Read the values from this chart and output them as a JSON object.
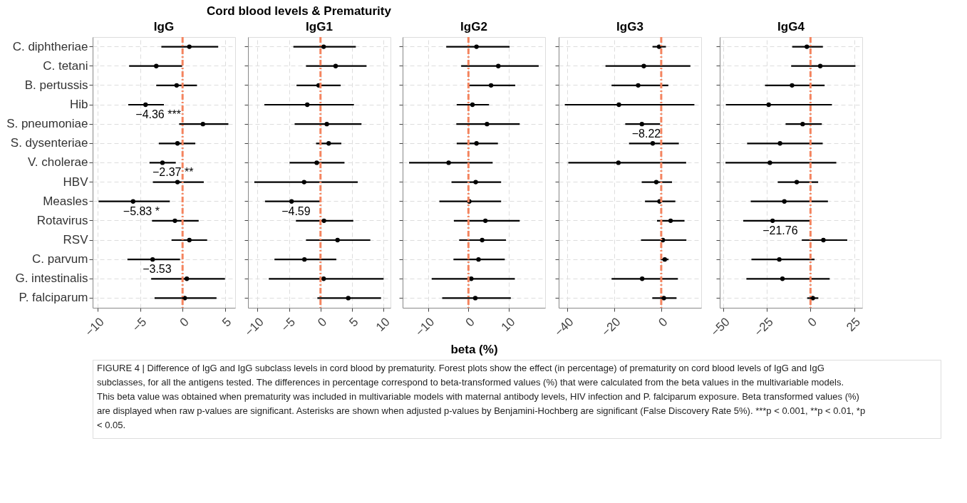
{
  "chart_data": [
    {
      "type": "scatter",
      "orientation": "horizontal",
      "title": "IgG",
      "color": "#000000",
      "grid": true,
      "marker": "circle",
      "categories": [
        "C. diphtheriae",
        "C. tetani",
        "B. pertussis",
        "Hib",
        "S. pneumoniae",
        "S. dysenteriae",
        "V. cholerae",
        "HBV",
        "Measles",
        "Rotavirus",
        "RSV",
        "C. parvum",
        "G. intestinalis",
        "P. falciparum"
      ],
      "values": [
        0.8,
        -3.1,
        -0.7,
        -4.36,
        2.4,
        -0.6,
        -2.37,
        -0.6,
        -5.83,
        -0.9,
        0.8,
        -3.53,
        0.5,
        0.25
      ],
      "errors": [
        [
          -2.5,
          4.2
        ],
        [
          -6.3,
          -0.05
        ],
        [
          -3.1,
          1.7
        ],
        [
          -6.4,
          -2.2
        ],
        [
          -0.4,
          5.4
        ],
        [
          -2.8,
          1.5
        ],
        [
          -3.9,
          -0.8
        ],
        [
          -3.5,
          2.5
        ],
        [
          -9.9,
          -1.5
        ],
        [
          -3.6,
          1.9
        ],
        [
          -1.3,
          2.9
        ],
        [
          -6.5,
          -0.3
        ],
        [
          -3.7,
          5.0
        ],
        [
          -3.3,
          4.0
        ]
      ],
      "xlim": [
        -10.6,
        6.2
      ],
      "xticks": [
        -10,
        -5,
        0,
        5
      ],
      "ref_lines": [
        {
          "axis": "x",
          "value": 0,
          "color": "#f4845f",
          "line_style": "dashed"
        }
      ],
      "annotations": [
        "Cord blood levels & Prematurity",
        {
          "text": "−4.36 ***",
          "x": -4.36,
          "y": "Hib"
        },
        {
          "text": "−2.37 **",
          "x": -2.37,
          "y": "V. cholerae"
        },
        {
          "text": "−5.83 *",
          "x": -5.83,
          "y": "Measles"
        },
        {
          "text": "−3.53",
          "x": -3.53,
          "y": "C. parvum"
        },
        "FIGURE 4 | Difference of IgG and IgG subclass levels in cord blood by prematurity. Forest plots show the effect (in percentage) of prematurity on cord blood levels of IgG and IgG subclasses, for all the antigens tested. The differences in percentage correspond to beta-transformed values (%) that were calculated from the beta values in the multivariable models. This beta value was obtained when prematurity was included in multivariable models with maternal antibody levels, HIV infection and P. falciparum exposure. Beta transformed values (%) are displayed when raw p-values are significant. Asterisks are shown when adjusted p-values by Benjamini-Hochberg are significant (False Discovery Rate 5%). ***p < 0.001, **p < 0.01, *p < 0.05."
      ]
    },
    {
      "type": "scatter",
      "orientation": "horizontal",
      "title": "IgG1",
      "color": "#000000",
      "grid": true,
      "marker": "circle",
      "tick_labels": "x",
      "categories": [
        "C. diphtheriae",
        "C. tetani",
        "B. pertussis",
        "Hib",
        "S. pneumoniae",
        "S. dysenteriae",
        "V. cholerae",
        "HBV",
        "Measles",
        "Rotavirus",
        "RSV",
        "C. parvum",
        "G. intestinalis",
        "P. falciparum"
      ],
      "values": [
        0.5,
        2.4,
        -0.3,
        -2.1,
        1.0,
        1.3,
        -0.6,
        -2.6,
        -4.59,
        0.55,
        2.7,
        -2.55,
        0.5,
        4.4
      ],
      "errors": [
        [
          -4.3,
          5.6
        ],
        [
          -2.3,
          7.3
        ],
        [
          -3.8,
          3.2
        ],
        [
          -8.9,
          5.3
        ],
        [
          -4.1,
          6.5
        ],
        [
          -0.7,
          3.3
        ],
        [
          -4.9,
          3.8
        ],
        [
          -10.5,
          5.9
        ],
        [
          -8.8,
          -0.05
        ],
        [
          -3.9,
          5.2
        ],
        [
          -2.3,
          7.9
        ],
        [
          -7.3,
          2.5
        ],
        [
          -8.2,
          10.0
        ],
        [
          -0.5,
          9.6
        ]
      ],
      "xlim": [
        -11.5,
        11.1
      ],
      "xticks": [
        -10,
        -5,
        0,
        5,
        10
      ],
      "ref_lines": [
        {
          "axis": "x",
          "value": 0,
          "color": "#f4845f",
          "line_style": "dashed"
        }
      ],
      "annotations": [
        {
          "text": "−4.59",
          "x": -4.59,
          "y": "Measles"
        }
      ]
    },
    {
      "type": "scatter",
      "orientation": "horizontal",
      "title": "IgG2",
      "xlabel": "beta (%)",
      "color": "#000000",
      "grid": true,
      "marker": "circle",
      "tick_labels": "x",
      "categories": [
        "C. diphtheriae",
        "C. tetani",
        "B. pertussis",
        "Hib",
        "S. pneumoniae",
        "S. dysenteriae",
        "V. cholerae",
        "HBV",
        "Measles",
        "Rotavirus",
        "RSV",
        "C. parvum",
        "G. intestinalis",
        "P. falciparum"
      ],
      "values": [
        2.0,
        7.4,
        5.6,
        1.0,
        4.6,
        2.0,
        -4.9,
        1.8,
        0.2,
        4.2,
        3.4,
        2.5,
        0.7,
        1.7
      ],
      "errors": [
        [
          -5.5,
          10.2
        ],
        [
          -1.8,
          17.4
        ],
        [
          0.0,
          11.6
        ],
        [
          -2.9,
          5.1
        ],
        [
          -3.0,
          12.7
        ],
        [
          -2.9,
          7.3
        ],
        [
          -14.7,
          6.0
        ],
        [
          -4.2,
          8.1
        ],
        [
          -7.2,
          8.1
        ],
        [
          -3.6,
          12.7
        ],
        [
          -2.3,
          9.3
        ],
        [
          -3.7,
          9.0
        ],
        [
          -9.1,
          11.5
        ],
        [
          -6.5,
          10.5
        ]
      ],
      "xlim": [
        -16.3,
        19.0
      ],
      "xticks": [
        -10,
        0,
        10
      ],
      "ref_lines": [
        {
          "axis": "x",
          "value": 0,
          "color": "#f4845f",
          "line_style": "dashed"
        }
      ]
    },
    {
      "type": "scatter",
      "orientation": "horizontal",
      "title": "IgG3",
      "color": "#000000",
      "grid": true,
      "marker": "circle",
      "tick_labels": "x",
      "categories": [
        "C. diphtheriae",
        "C. tetani",
        "B. pertussis",
        "Hib",
        "S. pneumoniae",
        "S. dysenteriae",
        "V. cholerae",
        "HBV",
        "Measles",
        "Rotavirus",
        "RSV",
        "C. parvum",
        "G. intestinalis",
        "P. falciparum"
      ],
      "values": [
        -0.9,
        -7.4,
        -9.8,
        -18.0,
        -8.22,
        -3.6,
        -18.2,
        -2.1,
        -0.7,
        4.0,
        0.7,
        1.5,
        -8.1,
        1.1
      ],
      "errors": [
        [
          -3.7,
          2.0
        ],
        [
          -23.7,
          12.4
        ],
        [
          -21.1,
          3.0
        ],
        [
          -41.0,
          14.1
        ],
        [
          -15.3,
          -0.5
        ],
        [
          -13.7,
          7.5
        ],
        [
          -39.5,
          10.6
        ],
        [
          -8.3,
          4.6
        ],
        [
          -6.9,
          6.0
        ],
        [
          -1.8,
          9.9
        ],
        [
          -8.6,
          10.7
        ],
        [
          -0.2,
          3.1
        ],
        [
          -21.1,
          7.1
        ],
        [
          -3.8,
          6.5
        ]
      ],
      "xlim": [
        -43.6,
        17.0
      ],
      "xticks": [
        -40,
        -20,
        0
      ],
      "ref_lines": [
        {
          "axis": "x",
          "value": 0,
          "color": "#f4845f",
          "line_style": "dashed"
        }
      ],
      "annotations": [
        {
          "text": "−8.22",
          "x": -8.22,
          "y": "S. pneumoniae"
        }
      ]
    },
    {
      "type": "scatter",
      "orientation": "horizontal",
      "title": "IgG4",
      "color": "#000000",
      "grid": true,
      "marker": "circle",
      "tick_labels": "x",
      "categories": [
        "C. diphtheriae",
        "C. tetani",
        "B. pertussis",
        "Hib",
        "S. pneumoniae",
        "S. dysenteriae",
        "V. cholerae",
        "HBV",
        "Measles",
        "Rotavirus",
        "RSV",
        "C. parvum",
        "G. intestinalis",
        "P. falciparum"
      ],
      "values": [
        -2.1,
        5.6,
        -10.6,
        -24.0,
        -4.5,
        -17.5,
        -23.3,
        -7.9,
        -15.0,
        -21.76,
        7.4,
        -17.9,
        -16.1,
        1.3
      ],
      "errors": [
        [
          -10.5,
          7.1
        ],
        [
          -11.1,
          25.8
        ],
        [
          -26.1,
          8.1
        ],
        [
          -48.6,
          12.3
        ],
        [
          -14.3,
          6.5
        ],
        [
          -36.4,
          7.0
        ],
        [
          -48.8,
          14.8
        ],
        [
          -18.8,
          4.4
        ],
        [
          -34.3,
          10.0
        ],
        [
          -38.6,
          -0.25
        ],
        [
          -5.0,
          21.1
        ],
        [
          -33.9,
          2.3
        ],
        [
          -36.8,
          11.0
        ],
        [
          -1.9,
          4.5
        ]
      ],
      "xlim": [
        -52.1,
        29.7
      ],
      "xticks": [
        -50,
        -25,
        0,
        25
      ],
      "ref_lines": [
        {
          "axis": "x",
          "value": 0,
          "color": "#f4845f",
          "line_style": "dashed"
        }
      ],
      "annotations": [
        {
          "text": "−21.76",
          "x": -21.76,
          "y": "Rotavirus"
        }
      ]
    }
  ]
}
